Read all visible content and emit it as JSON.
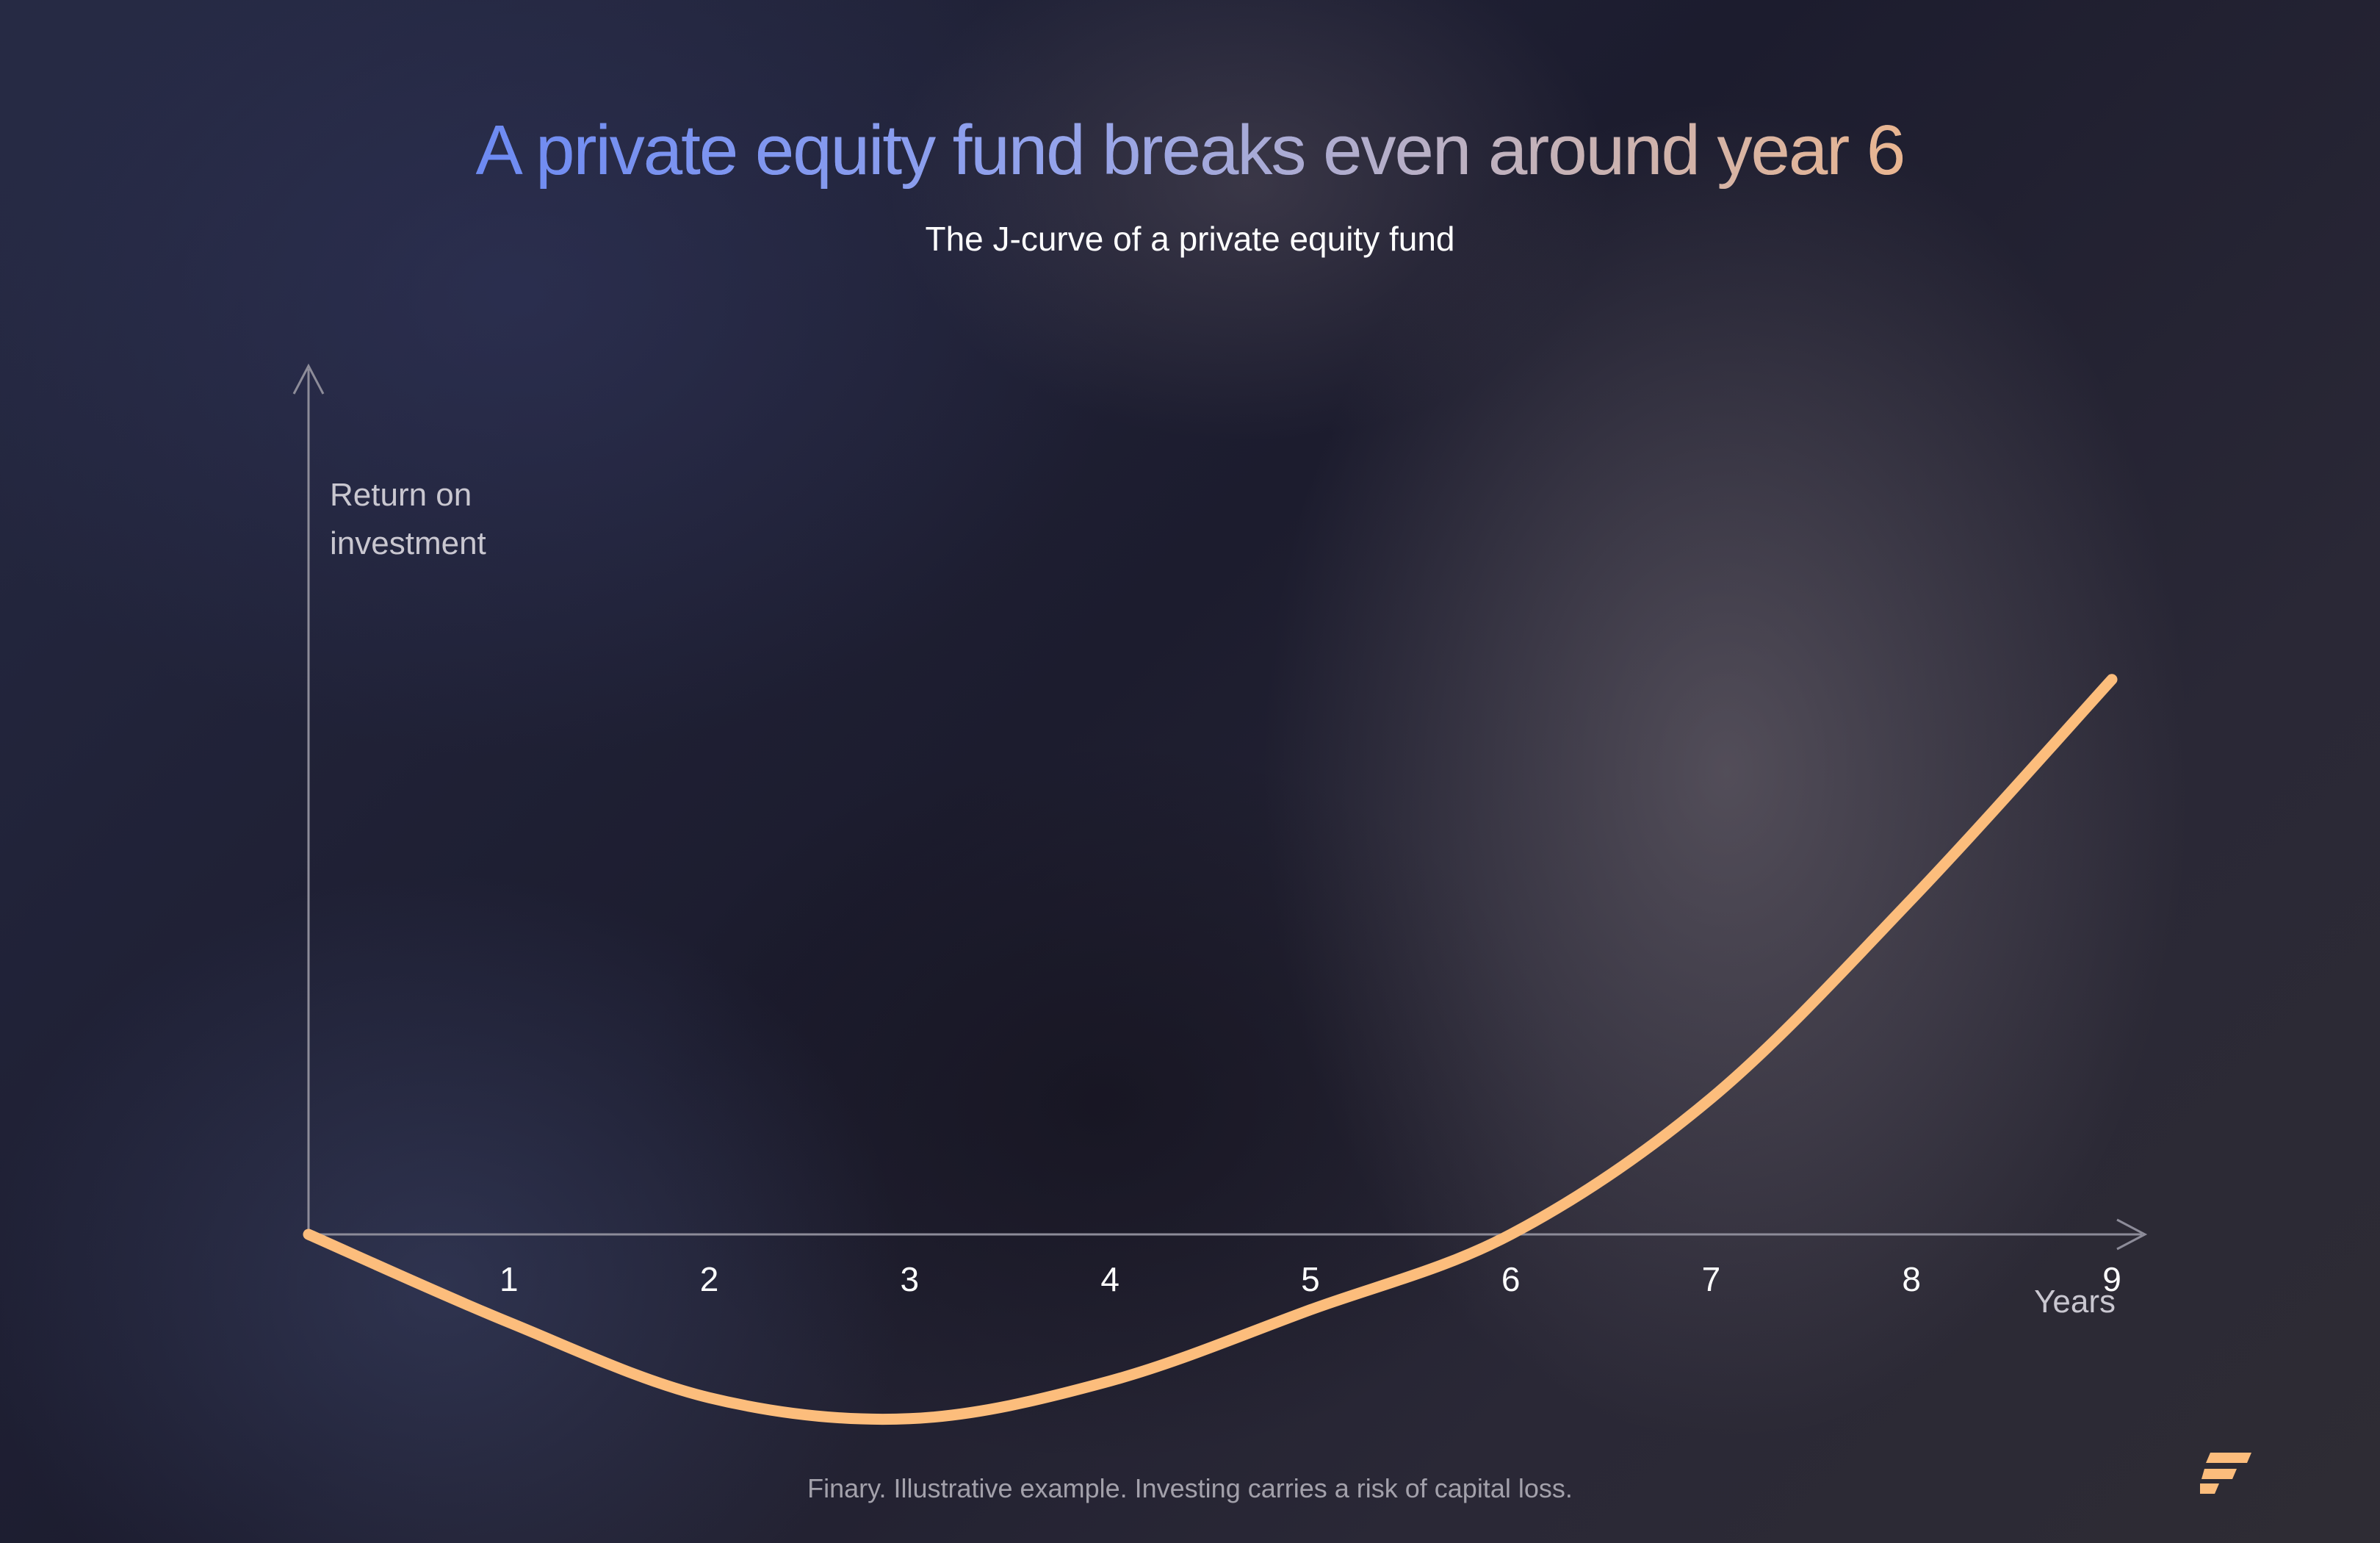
{
  "title": "A private equity fund breaks even around year 6",
  "subtitle": "The J-curve of a private equity fund",
  "footer": "Finary. Illustrative example. Investing carries a risk of capital loss.",
  "logo": "finary-logo-icon",
  "colors": {
    "curve": "#fcbd7c",
    "axis": "#8d8c99",
    "tick_label": "#ffffff",
    "axis_label": "#c9c7d0",
    "title_gradient_start": "#6d8af2",
    "title_gradient_end": "#e9b590",
    "logo": "#fcbd7c"
  },
  "chart_data": {
    "type": "line",
    "title": "A private equity fund breaks even around year 6",
    "subtitle": "The J-curve of a private equity fund",
    "xlabel": "Years",
    "ylabel": "Return on investment",
    "ylabel_lines": [
      "Return on",
      "investment"
    ],
    "x_ticks": [
      "1",
      "2",
      "3",
      "4",
      "5",
      "6",
      "7",
      "8",
      "9"
    ],
    "xlim": [
      0,
      9
    ],
    "ylim": [
      -0.9,
      4.2
    ],
    "grid": false,
    "legend": "none",
    "series": [
      {
        "x": [
          0,
          1,
          2,
          3,
          4,
          5,
          6,
          7,
          8,
          9
        ],
        "y": [
          0,
          -0.42,
          -0.78,
          -0.88,
          -0.7,
          -0.36,
          0,
          0.65,
          1.6,
          2.65
        ]
      }
    ]
  }
}
